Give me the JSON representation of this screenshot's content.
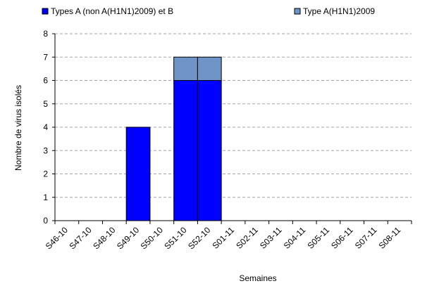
{
  "chart_data": {
    "type": "bar",
    "stacked": true,
    "categories": [
      "S46-10",
      "S47-10",
      "S48-10",
      "S49-10",
      "S50-10",
      "S51-10",
      "S52-10",
      "S01-11",
      "S02-11",
      "S03-11",
      "S04-11",
      "S05-11",
      "S06-11",
      "S07-11",
      "S08-11"
    ],
    "series": [
      {
        "name": "Types A (non A(H1N1)2009) et B",
        "color": "#0000ff",
        "values": [
          0,
          0,
          0,
          4,
          0,
          6,
          6,
          0,
          0,
          0,
          0,
          0,
          0,
          0,
          0
        ]
      },
      {
        "name": "Type A(H1N1)2009",
        "color": "#6f95c8",
        "values": [
          0,
          0,
          0,
          0,
          0,
          1,
          1,
          0,
          0,
          0,
          0,
          0,
          0,
          0,
          0
        ]
      }
    ],
    "xlabel": "Semaines",
    "ylabel": "Nombre de virus isolés",
    "ylim": [
      0,
      8
    ],
    "yticks": [
      0,
      1,
      2,
      3,
      4,
      5,
      6,
      7,
      8
    ],
    "grid": true,
    "legend_position": "top"
  }
}
